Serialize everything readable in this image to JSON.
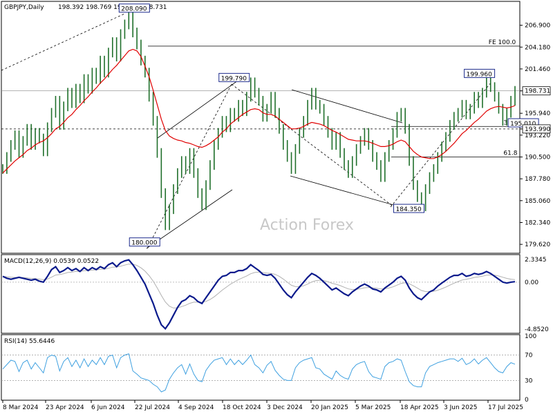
{
  "chart_data": {
    "type": "candlestick",
    "symbol_label": "GBPJPY,Daily",
    "ohlc": "198.392 198.769 198.202 198.731",
    "watermark": "Action Forex",
    "colors": {
      "price": "#000000",
      "ma": "#e00000",
      "macd": "#0a1a8c",
      "signal": "#b0b0b0",
      "rsi": "#3ea0e0",
      "grid": "#000000"
    },
    "price_axis": {
      "range": [
        178.6,
        209.7
      ],
      "ticks": [
        "206.900",
        "204.180",
        "201.460",
        "198.731",
        "195.940",
        "193.990",
        "193.220",
        "190.500",
        "187.780",
        "185.060",
        "182.340",
        "179.620"
      ],
      "tick_values": [
        206.9,
        204.18,
        201.46,
        198.731,
        195.94,
        193.99,
        193.22,
        190.5,
        187.78,
        185.06,
        182.34,
        179.62
      ],
      "current_price": "198.731",
      "level_3890": "193.990"
    },
    "x_axis": {
      "labels": [
        "8 Mar 2024",
        "23 Apr 2024",
        "6 Jun 2024",
        "22 Jul 2024",
        "4 Sep 2024",
        "18 Oct 2024",
        "3 Dec 2024",
        "20 Jan 2025",
        "5 Mar 2025",
        "18 Apr 2025",
        "3 Jun 2025",
        "17 Jul 2025"
      ]
    },
    "price_series": [
      189.0,
      190.5,
      192.0,
      193.2,
      191.0,
      192.5,
      194.0,
      192.0,
      193.5,
      192.8,
      191.2,
      194.2,
      196.0,
      197.5,
      194.5,
      196.8,
      198.5,
      197.2,
      199.0,
      197.8,
      200.2,
      199.0,
      201.0,
      200.2,
      202.5,
      201.0,
      203.5,
      204.8,
      203.0,
      205.8,
      207.0,
      208.09,
      206.0,
      204.5,
      202.5,
      201.0,
      198.0,
      195.0,
      191.0,
      186.0,
      182.0,
      184.0,
      186.5,
      188.5,
      190.0,
      189.0,
      191.0,
      188.5,
      186.0,
      184.5,
      187.0,
      189.5,
      192.0,
      193.5,
      195.0,
      194.2,
      196.0,
      195.5,
      197.0,
      196.2,
      198.0,
      199.79,
      198.5,
      197.5,
      195.5,
      196.5,
      198.0,
      196.0,
      194.0,
      192.0,
      190.5,
      189.0,
      191.5,
      193.5,
      195.0,
      197.0,
      198.5,
      197.0,
      196.5,
      195.0,
      193.5,
      192.0,
      193.0,
      191.0,
      189.5,
      188.5,
      190.0,
      191.5,
      192.5,
      193.5,
      192.0,
      190.5,
      189.5,
      188.0,
      190.5,
      192.0,
      193.5,
      195.5,
      196.0,
      194.0,
      190.0,
      187.0,
      185.5,
      184.35,
      186.5,
      188.0,
      189.0,
      190.5,
      191.8,
      193.0,
      194.5,
      195.5,
      196.0,
      197.0,
      195.8,
      196.5,
      198.0,
      197.2,
      198.5,
      199.96,
      199.2,
      198.0,
      196.5,
      195.01,
      196.0,
      197.5,
      198.731
    ],
    "ma_series": [
      188.5,
      189.0,
      189.5,
      190.0,
      190.4,
      190.8,
      191.3,
      191.6,
      192.0,
      192.3,
      192.5,
      192.9,
      193.4,
      194.0,
      194.3,
      194.8,
      195.4,
      195.8,
      196.4,
      196.9,
      197.5,
      198.0,
      198.6,
      199.1,
      199.7,
      200.2,
      200.8,
      201.4,
      201.9,
      202.5,
      203.1,
      203.7,
      203.9,
      203.7,
      203.0,
      201.8,
      200.5,
      198.8,
      197.0,
      195.2,
      193.8,
      193.1,
      192.8,
      192.6,
      192.5,
      192.3,
      192.2,
      192.0,
      191.8,
      191.7,
      191.9,
      192.2,
      192.6,
      193.0,
      193.6,
      194.0,
      194.6,
      195.0,
      195.4,
      195.8,
      196.1,
      196.4,
      196.5,
      196.4,
      196.0,
      195.8,
      195.8,
      195.6,
      195.2,
      194.8,
      194.4,
      194.0,
      194.0,
      194.1,
      194.3,
      194.6,
      194.8,
      194.7,
      194.6,
      194.4,
      194.1,
      193.8,
      193.6,
      193.3,
      193.0,
      192.7,
      192.6,
      192.5,
      192.5,
      192.5,
      192.4,
      192.2,
      192.0,
      191.8,
      191.8,
      191.9,
      192.1,
      192.4,
      192.6,
      192.4,
      191.8,
      191.2,
      190.8,
      190.5,
      190.4,
      190.3,
      190.3,
      190.5,
      190.8,
      191.2,
      191.7,
      192.2,
      192.8,
      193.4,
      193.8,
      194.3,
      194.8,
      195.2,
      195.7,
      196.2,
      196.5,
      196.7,
      196.8,
      196.7,
      196.6,
      196.7,
      196.9
    ],
    "annotations": [
      {
        "label": "208.090",
        "value": 208.09
      },
      {
        "label": "199.790",
        "value": 199.79
      },
      {
        "label": "180.000",
        "value": 180.0
      },
      {
        "label": "184.350",
        "value": 184.35
      },
      {
        "label": "199.960",
        "value": 199.96
      },
      {
        "label": "195.010",
        "value": 195.01
      }
    ],
    "fib_levels": [
      {
        "label": "FE 100.0",
        "value": 204.3
      },
      {
        "label": "38.2",
        "value": 194.3
      },
      {
        "label": "61.8",
        "value": 190.5
      }
    ],
    "macd": {
      "label": "MACD(12,26,9) 0.0539 0.0522",
      "ticks": [
        "2.3345",
        "0.00",
        "-4.8520"
      ],
      "tick_values": [
        2.3345,
        0.0,
        -4.852
      ],
      "range": [
        -5.2,
        2.7
      ],
      "macd_series": [
        0.6,
        0.4,
        0.3,
        0.4,
        0.5,
        0.4,
        0.3,
        0.2,
        0.3,
        0.1,
        0.0,
        0.6,
        1.3,
        1.6,
        1.0,
        1.2,
        1.5,
        1.2,
        1.4,
        1.1,
        1.5,
        1.2,
        1.5,
        1.3,
        1.6,
        1.4,
        1.8,
        2.0,
        1.6,
        2.0,
        2.2,
        2.3,
        1.8,
        1.2,
        0.5,
        -0.2,
        -1.2,
        -2.2,
        -3.4,
        -4.4,
        -4.8,
        -4.2,
        -3.4,
        -2.6,
        -2.0,
        -1.8,
        -1.4,
        -1.6,
        -2.0,
        -2.2,
        -1.6,
        -1.0,
        -0.4,
        0.2,
        0.6,
        0.7,
        1.0,
        1.0,
        1.2,
        1.2,
        1.4,
        1.8,
        1.5,
        1.2,
        0.8,
        0.7,
        0.8,
        0.4,
        -0.2,
        -0.8,
        -1.3,
        -1.6,
        -1.0,
        -0.5,
        0.0,
        0.5,
        0.9,
        0.7,
        0.4,
        0.0,
        -0.4,
        -0.8,
        -0.6,
        -0.9,
        -1.2,
        -1.4,
        -1.0,
        -0.7,
        -0.4,
        -0.2,
        -0.4,
        -0.7,
        -0.8,
        -1.0,
        -0.6,
        -0.3,
        0.0,
        0.4,
        0.6,
        0.2,
        -0.6,
        -1.2,
        -1.6,
        -1.8,
        -1.4,
        -1.0,
        -0.8,
        -0.4,
        -0.1,
        0.2,
        0.5,
        0.7,
        0.7,
        0.9,
        0.6,
        0.7,
        0.9,
        0.8,
        0.9,
        1.1,
        0.9,
        0.6,
        0.3,
        0.0,
        -0.1,
        0.0,
        0.05
      ]
    },
    "rsi": {
      "label": "RSI(14) 55.6446",
      "ticks": [
        "100",
        "70",
        "30",
        "0"
      ],
      "tick_values": [
        100,
        70,
        30,
        0
      ],
      "rsi_series": [
        48,
        55,
        62,
        60,
        44,
        58,
        62,
        48,
        58,
        50,
        42,
        66,
        70,
        68,
        45,
        60,
        66,
        52,
        62,
        50,
        64,
        52,
        62,
        55,
        66,
        55,
        68,
        70,
        50,
        66,
        70,
        72,
        45,
        40,
        34,
        32,
        30,
        24,
        20,
        12,
        15,
        32,
        42,
        50,
        55,
        40,
        56,
        40,
        30,
        28,
        46,
        55,
        62,
        64,
        66,
        55,
        64,
        55,
        62,
        55,
        62,
        70,
        55,
        50,
        42,
        54,
        60,
        46,
        38,
        32,
        30,
        30,
        50,
        58,
        62,
        64,
        66,
        50,
        48,
        40,
        36,
        32,
        45,
        38,
        34,
        32,
        48,
        55,
        58,
        60,
        44,
        36,
        34,
        32,
        52,
        58,
        60,
        64,
        62,
        44,
        28,
        22,
        20,
        20,
        42,
        52,
        55,
        58,
        60,
        62,
        64,
        64,
        60,
        65,
        55,
        58,
        64,
        56,
        62,
        66,
        58,
        50,
        44,
        42,
        52,
        58,
        55.6
      ]
    }
  }
}
